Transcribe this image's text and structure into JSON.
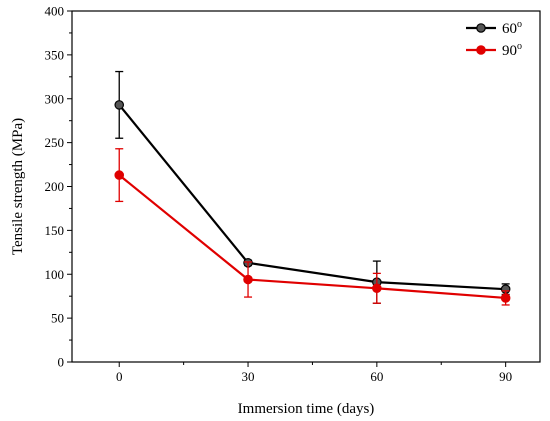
{
  "chart_data": {
    "type": "line",
    "title": "",
    "xlabel": "Immersion time (days)",
    "ylabel": "Tensile strength (MPa)",
    "x": [
      0,
      30,
      60,
      90
    ],
    "xticks": [
      "0",
      "30",
      "60",
      "90"
    ],
    "xlim": [
      -11,
      98
    ],
    "ylim": [
      0,
      400
    ],
    "yticks": [
      "0",
      "50",
      "100",
      "150",
      "200",
      "250",
      "300",
      "350",
      "400"
    ],
    "grid": false,
    "legend": "top-right",
    "series": [
      {
        "name": "60",
        "name_superscript": "o",
        "color": "#000000",
        "marker_fill": "#555555",
        "values": [
          293,
          113,
          91,
          83
        ],
        "errors": [
          38,
          3,
          24,
          6
        ]
      },
      {
        "name": "90",
        "name_superscript": "o",
        "color": "#e00000",
        "marker_fill": "#e00000",
        "values": [
          213,
          94,
          84,
          73
        ],
        "errors": [
          30,
          20,
          17,
          8
        ]
      }
    ]
  }
}
